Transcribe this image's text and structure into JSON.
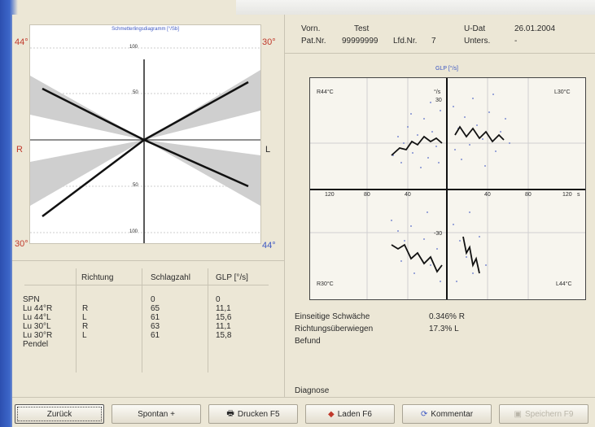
{
  "diagram": {
    "title": "Schmetterlingsdiagramm [°/Sb]",
    "corner_tl": "44°",
    "corner_tr": "30°",
    "corner_bl": "30°",
    "corner_br": "44°",
    "side_left": "R",
    "side_right": "L",
    "ticks": [
      "100",
      "50",
      "50",
      "100"
    ]
  },
  "patient": {
    "name_label": "Vorn.",
    "name_value": "Test",
    "patnr_label": "Pat.Nr.",
    "patnr_value": "99999999",
    "lfdnr_label": "Lfd.Nr.",
    "lfdnr_value": "7",
    "date_label": "U-Dat",
    "date_value": "26.01.2004",
    "exam_label": "Unters.",
    "exam_value": "-"
  },
  "scatter": {
    "title": "GLP [°/s]",
    "q_tl": "R44°C",
    "q_tr": "L30°C",
    "q_bl": "R30°C",
    "q_br": "L44°C",
    "y_unit": "°/s",
    "y_top": "30",
    "y_bottom": "-30",
    "x_ticks": [
      "120",
      "80",
      "40",
      "40",
      "80",
      "120"
    ],
    "x_unit": "s"
  },
  "table": {
    "headers": [
      "Richtung",
      "Schlagzahl",
      "GLP [°/s]"
    ],
    "rows": [
      {
        "name": "SPN",
        "dir": "",
        "count": "0",
        "glp": "0"
      },
      {
        "name": "Lu 44°R",
        "dir": "R",
        "count": "65",
        "glp": "11,1"
      },
      {
        "name": "Lu 44°L",
        "dir": "L",
        "count": "61",
        "glp": "15,6"
      },
      {
        "name": "Lu 30°L",
        "dir": "R",
        "count": "63",
        "glp": "11,1"
      },
      {
        "name": "Lu 30°R",
        "dir": "L",
        "count": "61",
        "glp": "15,8"
      },
      {
        "name": "Pendel",
        "dir": "",
        "count": "",
        "glp": ""
      }
    ]
  },
  "results": {
    "ws_label": "Einseitige Schwäche",
    "ws_value": "0.346% R",
    "ru_label": "Richtungsüberwiegen",
    "ru_value": "17.3% L",
    "befund_label": "Befund",
    "diagnose_label": "Diagnose"
  },
  "buttons": {
    "back": "Zurück",
    "spontan": "Spontan +",
    "print": "Drucken F5",
    "load": "Laden F6",
    "comment": "Kommentar",
    "save": "Speichern F9"
  },
  "colors": {
    "accent_red": "#c0392b",
    "accent_blue": "#3b56c2"
  }
}
